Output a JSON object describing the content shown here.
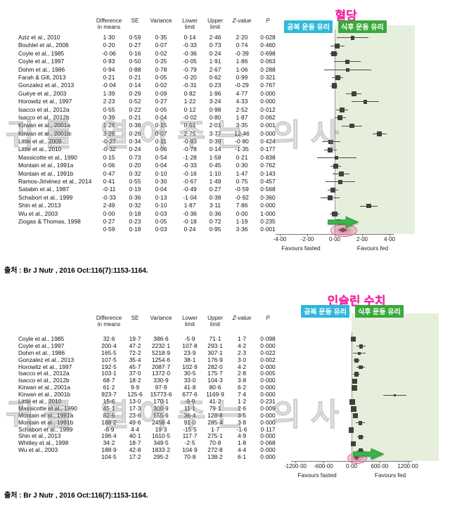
{
  "watermark": "귀를 열어주는 의사",
  "chart_data": [
    {
      "type": "forest",
      "title": "혈당",
      "title_color": "#f2169e",
      "label_fasted": "공복 운동 유리",
      "label_fasted_color": "#2fb8d9",
      "label_fed": "식후 운동 유리",
      "label_fed_color": "#3ba83b",
      "shade_color": "#e6efdc",
      "columns": {
        "study": "",
        "diff": "Difference\nin means",
        "se": "SE",
        "variance": "Variance",
        "lower": "Lower\nlimit",
        "upper": "Upper\nlimit",
        "z": "Z-value",
        "p": "P"
      },
      "ticks": [
        {
          "label": "-4·00",
          "value": -4
        },
        {
          "label": "-2·00",
          "value": -2
        },
        {
          "label": "0·00",
          "value": 0
        },
        {
          "label": "2·00",
          "value": 2
        },
        {
          "label": "4·00",
          "value": 4
        }
      ],
      "axis_left_label": "Favours fasted",
      "axis_right_label": "Favours fed",
      "annotations": {
        "arrow_color": "#3bb54a",
        "highlight_color": "#e05a8a"
      },
      "source": "출처 : Br J Nutr , 2016 Oct:116(7):1153-1164.",
      "rows": [
        {
          "study": "Aziz et al., 2010",
          "diff": "1·30",
          "se": "0·59",
          "variance": "0·35",
          "lower": "0·14",
          "upper": "2·46",
          "z": "2·20",
          "p": "0·028"
        },
        {
          "study": "Bouhlel et al., 2006",
          "diff": "0·20",
          "se": "0·27",
          "variance": "0·07",
          "lower": "-0·33",
          "upper": "0·73",
          "z": "0·74",
          "p": "0·460"
        },
        {
          "study": "Coyle et al., 1985",
          "diff": "-0·06",
          "se": "0·16",
          "variance": "0·02",
          "lower": "-0·36",
          "upper": "0·24",
          "z": "-0·39",
          "p": "0·698"
        },
        {
          "study": "Coyle et al., 1997",
          "diff": "0·93",
          "se": "0·50",
          "variance": "0·25",
          "lower": "-0·05",
          "upper": "1·91",
          "z": "1·86",
          "p": "0·063"
        },
        {
          "study": "Dohm et al., 1986",
          "diff": "0·94",
          "se": "0·88",
          "variance": "0·78",
          "lower": "-0·79",
          "upper": "2·67",
          "z": "1·06",
          "p": "0·288"
        },
        {
          "study": "Farah & Gill, 2013",
          "diff": "0·21",
          "se": "0·21",
          "variance": "0·05",
          "lower": "-0·20",
          "upper": "0·62",
          "z": "0·99",
          "p": "0·321"
        },
        {
          "study": "Gonzalez et al., 2013",
          "diff": "-0·04",
          "se": "0·14",
          "variance": "0·02",
          "lower": "-0·31",
          "upper": "0·23",
          "z": "-0·29",
          "p": "0·767"
        },
        {
          "study": "Guéye et al., 2003",
          "diff": "1·39",
          "se": "0·29",
          "variance": "0·09",
          "lower": "0·82",
          "upper": "1·96",
          "z": "4·77",
          "p": "0·000"
        },
        {
          "study": "Horowitz et al., 1997",
          "diff": "2·23",
          "se": "0·52",
          "variance": "0·27",
          "lower": "1·22",
          "upper": "3·24",
          "z": "4·33",
          "p": "0·000"
        },
        {
          "study": "Isacco et al., 2012a",
          "diff": "0·55",
          "se": "0·22",
          "variance": "0·05",
          "lower": "0·12",
          "upper": "0·98",
          "z": "2·52",
          "p": "0·012"
        },
        {
          "study": "Isacco et al., 2012b",
          "diff": "0·39",
          "se": "0·21",
          "variance": "0·04",
          "lower": "-0·02",
          "upper": "0·80",
          "z": "1·87",
          "p": "0·062"
        },
        {
          "study": "Kirwan et al., 2001a",
          "diff": "1·26",
          "se": "0·38",
          "variance": "0·15",
          "lower": "0·51",
          "upper": "2·01",
          "z": "3·35",
          "p": "0·001"
        },
        {
          "study": "Kirwan et al., 2001b",
          "diff": "3·26",
          "se": "0·26",
          "variance": "0·07",
          "lower": "2·75",
          "upper": "3·77",
          "z": "12·46",
          "p": "0·000"
        },
        {
          "study": "Little et al., 2009",
          "diff": "-0·27",
          "se": "0·34",
          "variance": "0·11",
          "lower": "-0·93",
          "upper": "0·39",
          "z": "-0·80",
          "p": "0·424"
        },
        {
          "study": "Little et al., 2010",
          "diff": "-0·32",
          "se": "0·24",
          "variance": "0·06",
          "lower": "-0·78",
          "upper": "0·14",
          "z": "-1·35",
          "p": "0·177"
        },
        {
          "study": "Massicotte et al., 1990",
          "diff": "0·15",
          "se": "0·73",
          "variance": "0·54",
          "lower": "-1·28",
          "upper": "1·58",
          "z": "0·21",
          "p": "0·838"
        },
        {
          "study": "Montain et al., 1991a",
          "diff": "0·06",
          "se": "0·20",
          "variance": "0·04",
          "lower": "-0·33",
          "upper": "0·45",
          "z": "0·30",
          "p": "0·762"
        },
        {
          "study": "Montain et al., 1991b",
          "diff": "0·47",
          "se": "0·32",
          "variance": "0·10",
          "lower": "-0·16",
          "upper": "1·10",
          "z": "1·47",
          "p": "0·143"
        },
        {
          "study": "Ramos-Jiménez et al., 2014",
          "diff": "0·41",
          "se": "0·55",
          "variance": "0·30",
          "lower": "-0·67",
          "upper": "1·49",
          "z": "0·75",
          "p": "0·457"
        },
        {
          "study": "Satabin et al., 1987",
          "diff": "-0·11",
          "se": "0·19",
          "variance": "0·04",
          "lower": "-0·49",
          "upper": "0·27",
          "z": "-0·59",
          "p": "0·568"
        },
        {
          "study": "Schabort et al., 1999",
          "diff": "-0·33",
          "se": "0·36",
          "variance": "0·13",
          "lower": "-1·04",
          "upper": "0·38",
          "z": "-0·92",
          "p": "0·360"
        },
        {
          "study": "Shin et al., 2013",
          "diff": "2·49",
          "se": "0·32",
          "variance": "0·10",
          "lower": "1·87",
          "upper": "3·11",
          "z": "7·86",
          "p": "0·000"
        },
        {
          "study": "Wu et al., 2003",
          "diff": "0·00",
          "se": "0·18",
          "variance": "0·03",
          "lower": "-0·36",
          "upper": "0·36",
          "z": "0·00",
          "p": "1·000"
        },
        {
          "study": "Ziogas & Thomas, 1998",
          "diff": "0·27",
          "se": "0·23",
          "variance": "0·05",
          "lower": "-0·18",
          "upper": "0·72",
          "z": "1·19",
          "p": "0·235"
        },
        {
          "study": "",
          "diff": "0·59",
          "se": "0·18",
          "variance": "0·03",
          "lower": "0·24",
          "upper": "0·95",
          "z": "3·36",
          "p": "0·001",
          "overall": true
        }
      ]
    },
    {
      "type": "forest",
      "title": "인슐린 수치",
      "title_color": "#f2169e",
      "label_fasted": "공복 운동 유리",
      "label_fasted_color": "#2fb8d9",
      "label_fed": "식후 운동 유리",
      "label_fed_color": "#3ba83b",
      "shade_color": "#e6efdc",
      "columns": {
        "study": "",
        "diff": "Difference\nin means",
        "se": "SE",
        "variance": "Variance",
        "lower": "Lower\nlimit",
        "upper": "Upper\nlimit",
        "z": "Z-value",
        "p": "P"
      },
      "ticks": [
        {
          "label": "-1200·00",
          "value": -1200
        },
        {
          "label": "-600·00",
          "value": -600
        },
        {
          "label": "0·00",
          "value": 0
        },
        {
          "label": "600·00",
          "value": 600
        },
        {
          "label": "1200·00",
          "value": 1200
        }
      ],
      "axis_left_label": "Favours fasted",
      "axis_right_label": "Favours fed",
      "annotations": {
        "arrow_color": "#3bb54a",
        "highlight_color": "#e05a8a"
      },
      "source": "출처 : Br J Nutr , 2016 Oct:116(7):1153-1164.",
      "rows": [
        {
          "study": "Coyle et al., 1985",
          "diff": "32·6",
          "se": "19·7",
          "variance": "386·6",
          "lower": "-5·9",
          "upper": "71·1",
          "z": "1·7",
          "p": "0·098"
        },
        {
          "study": "Coyle et al., 1997",
          "diff": "200·4",
          "se": "47·2",
          "variance": "2232·1",
          "lower": "107·8",
          "upper": "293·1",
          "z": "4·2",
          "p": "0·000"
        },
        {
          "study": "Dohm et al., 1986",
          "diff": "165·5",
          "se": "72·2",
          "variance": "5218·9",
          "lower": "23·9",
          "upper": "307·1",
          "z": "2·3",
          "p": "0·022"
        },
        {
          "study": "Gonzalez et al., 2013",
          "diff": "107·5",
          "se": "35·4",
          "variance": "1254·6",
          "lower": "38·1",
          "upper": "176·9",
          "z": "3·0",
          "p": "0·002"
        },
        {
          "study": "Horowitz et al., 1997",
          "diff": "192·5",
          "se": "45·7",
          "variance": "2087·7",
          "lower": "102·9",
          "upper": "282·0",
          "z": "4·2",
          "p": "0·000"
        },
        {
          "study": "Isacco et al., 2012a",
          "diff": "103·1",
          "se": "37·0",
          "variance": "1372·0",
          "lower": "30·5",
          "upper": "175·7",
          "z": "2·8",
          "p": "0·005"
        },
        {
          "study": "Isacco et al., 2012b",
          "diff": "68·7",
          "se": "18·2",
          "variance": "330·9",
          "lower": "33·0",
          "upper": "104·3",
          "z": "3·8",
          "p": "0·000"
        },
        {
          "study": "Kirwan et al., 2001a",
          "diff": "61·2",
          "se": "9·9",
          "variance": "97·9",
          "lower": "41·8",
          "upper": "80·6",
          "z": "6·2",
          "p": "0·000"
        },
        {
          "study": "Kirwan et al., 2001b",
          "diff": "923·7",
          "se": "125·6",
          "variance": "15773·6",
          "lower": "677·6",
          "upper": "1169·9",
          "z": "7·4",
          "p": "0·000"
        },
        {
          "study": "Little et al., 2010",
          "diff": "15·6",
          "se": "13·0",
          "variance": "170·1",
          "lower": "-9·9",
          "upper": "41·2",
          "z": "1·2",
          "p": "0·231"
        },
        {
          "study": "Massicotte et al., 1990",
          "diff": "45·1",
          "se": "17·3",
          "variance": "300·9",
          "lower": "11·1",
          "upper": "79·1",
          "z": "2·6",
          "p": "0·009"
        },
        {
          "study": "Montain et al., 1991a",
          "diff": "82·6",
          "se": "23·6",
          "variance": "555·6",
          "lower": "36·4",
          "upper": "128·8",
          "z": "3·5",
          "p": "0·000"
        },
        {
          "study": "Montain et al., 1991b",
          "diff": "188·2",
          "se": "49·6",
          "variance": "2458·4",
          "lower": "91·0",
          "upper": "285·4",
          "z": "3·8",
          "p": "0·000"
        },
        {
          "study": "Schabort et al., 1999",
          "diff": "-6·9",
          "se": "4·4",
          "variance": "19·3",
          "lower": "-15·5",
          "upper": "1·7",
          "z": "-1·6",
          "p": "0·117"
        },
        {
          "study": "Shin et al., 2013",
          "diff": "196·4",
          "se": "40·1",
          "variance": "1610·5",
          "lower": "117·7",
          "upper": "275·1",
          "z": "4·9",
          "p": "0·000"
        },
        {
          "study": "Whitley et al., 1998",
          "diff": "34·2",
          "se": "18·7",
          "variance": "349·5",
          "lower": "-2·5",
          "upper": "70·8",
          "z": "1·8",
          "p": "0·068"
        },
        {
          "study": "Wu et al., 2003",
          "diff": "188·9",
          "se": "42·8",
          "variance": "1833·2",
          "lower": "104·9",
          "upper": "272·8",
          "z": "4·4",
          "p": "0·000"
        },
        {
          "study": "",
          "diff": "104·5",
          "se": "17·2",
          "variance": "295·2",
          "lower": "70·8",
          "upper": "138·2",
          "z": "6·1",
          "p": "0·000",
          "overall": true
        }
      ]
    }
  ]
}
